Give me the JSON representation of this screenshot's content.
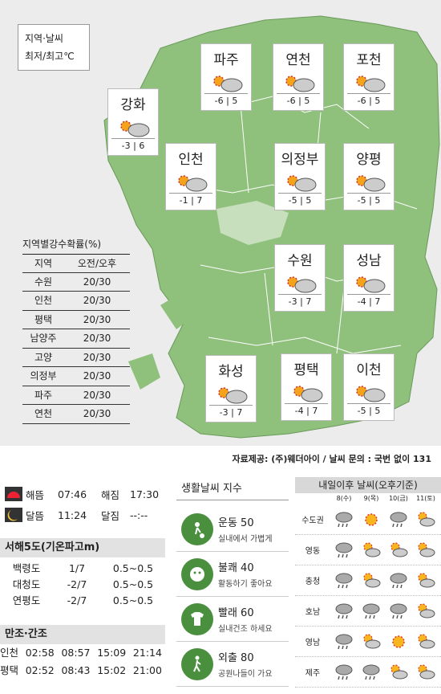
{
  "legend": {
    "line1": "지역·날씨",
    "line2": "최저/최고℃"
  },
  "cities": [
    {
      "name": "파주",
      "temps": "-6 | 5",
      "icon": "sun-cloud-icon"
    },
    {
      "name": "연천",
      "temps": "-6 | 5",
      "icon": "sun-cloud-icon"
    },
    {
      "name": "포천",
      "temps": "-6 | 5",
      "icon": "sun-cloud-icon"
    },
    {
      "name": "강화",
      "temps": "-3 | 6",
      "icon": "sun-cloud-icon"
    },
    {
      "name": "인천",
      "temps": "-1 | 7",
      "icon": "sun-cloud-icon"
    },
    {
      "name": "의정부",
      "temps": "-5 | 5",
      "icon": "sun-cloud-icon"
    },
    {
      "name": "양평",
      "temps": "-5 | 5",
      "icon": "sun-cloud-icon"
    },
    {
      "name": "수원",
      "temps": "-3 | 7",
      "icon": "sun-cloud-icon"
    },
    {
      "name": "성남",
      "temps": "-4 | 7",
      "icon": "sun-cloud-icon"
    },
    {
      "name": "화성",
      "temps": "-3 | 7",
      "icon": "sun-cloud-icon"
    },
    {
      "name": "평택",
      "temps": "-4 | 7",
      "icon": "sun-cloud-icon"
    },
    {
      "name": "이천",
      "temps": "-5 | 5",
      "icon": "sun-cloud-icon"
    }
  ],
  "rain": {
    "title": "지역별강수확률(%)",
    "header": [
      "지역",
      "오전/오후"
    ],
    "rows": [
      [
        "수원",
        "20/30"
      ],
      [
        "인천",
        "20/30"
      ],
      [
        "평택",
        "20/30"
      ],
      [
        "남양주",
        "20/30"
      ],
      [
        "고양",
        "20/30"
      ],
      [
        "의정부",
        "20/30"
      ],
      [
        "파주",
        "20/30"
      ],
      [
        "연천",
        "20/30"
      ]
    ]
  },
  "source": "자료제공: (주)웨더아이 / 날씨 문의 : 국번 없이 131",
  "sunmoon": [
    {
      "l1": "해뜸",
      "v1": "07:46",
      "l2": "해짐",
      "v2": "17:30",
      "icon": "sunrise-icon"
    },
    {
      "l1": "달뜸",
      "v1": "11:24",
      "l2": "달짐",
      "v2": "--:--",
      "icon": "moonrise-icon"
    }
  ],
  "sea": {
    "title": "서해5도(기온파고m)",
    "rows": [
      [
        "백령도",
        "1/7",
        "0.5~0.5"
      ],
      [
        "대청도",
        "-2/7",
        "0.5~0.5"
      ],
      [
        "연평도",
        "-2/7",
        "0.5~0.5"
      ]
    ]
  },
  "tide": {
    "title": "만조·간조",
    "rows": [
      [
        "인천",
        "02:58",
        "08:57",
        "15:09",
        "21:14"
      ],
      [
        "평택",
        "02:52",
        "08:43",
        "15:02",
        "21:00"
      ]
    ]
  },
  "life": {
    "title": "생활날씨 지수",
    "items": [
      {
        "name": "운동 50",
        "desc": "실내에서 가볍게",
        "icon": "soccer-icon"
      },
      {
        "name": "불쾌 40",
        "desc": "활동하기 좋아요",
        "icon": "face-icon"
      },
      {
        "name": "빨래 60",
        "desc": "실내건조 하세요",
        "icon": "shirt-icon"
      },
      {
        "name": "외출 80",
        "desc": "공원나들이 가요",
        "icon": "walk-icon"
      }
    ]
  },
  "forecast": {
    "title": "내일이후 날씨(오후기준)",
    "days": [
      "8(수)",
      "9(목)",
      "10(금)",
      "11(토)"
    ],
    "rows": [
      {
        "region": "수도권",
        "icons": [
          "rain-icon",
          "sun-icon",
          "rain-icon",
          "sun-cloud-icon"
        ]
      },
      {
        "region": "영동",
        "icons": [
          "rain-icon",
          "sun-cloud-icon",
          "sun-cloud-icon",
          "sun-cloud-icon"
        ]
      },
      {
        "region": "충청",
        "icons": [
          "rain-icon",
          "sun-cloud-icon",
          "rain-icon",
          "sun-cloud-icon"
        ]
      },
      {
        "region": "호남",
        "icons": [
          "rain-icon",
          "rain-icon",
          "rain-icon",
          "sun-cloud-icon"
        ]
      },
      {
        "region": "영남",
        "icons": [
          "rain-icon",
          "sun-cloud-icon",
          "sun-icon",
          "sun-cloud-icon"
        ]
      },
      {
        "region": "제주",
        "icons": [
          "rain-icon",
          "rain-icon",
          "sun-cloud-icon",
          "sun-cloud-icon"
        ]
      }
    ]
  }
}
